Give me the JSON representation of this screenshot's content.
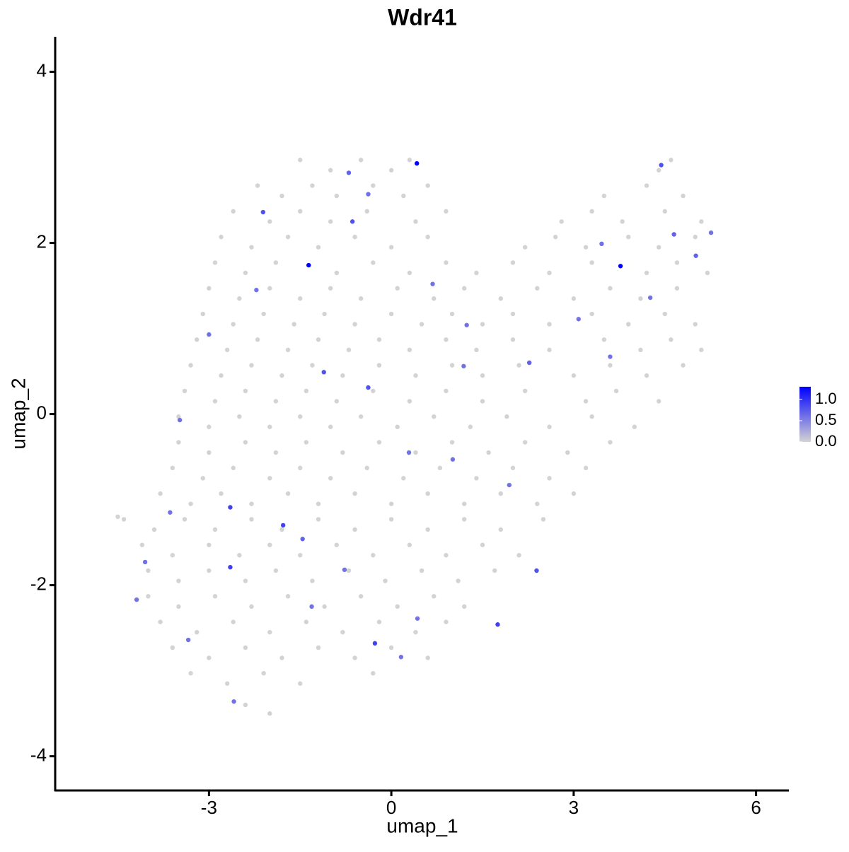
{
  "chart_data": {
    "type": "scatter",
    "title": "Wdr41",
    "x_label": "umap_1",
    "y_label": "umap_2",
    "xlim": [
      -5.53,
      6.54
    ],
    "ylim": [
      -4.4,
      4.41
    ],
    "xticks": [
      -3,
      0,
      3,
      6
    ],
    "yticks": [
      -4,
      -2,
      0,
      2,
      4
    ],
    "color_low": "#d3d3d3",
    "color_high": "#0000ff",
    "clim": [
      0,
      1.3
    ],
    "cticks": [
      {
        "value": 0,
        "label": "0.0"
      },
      0.5,
      {
        "value": 1,
        "label": "1.0"
      }
    ],
    "x": [
      -1.5,
      -1,
      -0.5,
      0,
      0.3,
      4.4,
      4.6,
      -2.2,
      -1.8,
      -1.3,
      -0.9,
      -0.3,
      0.2,
      0.6,
      3.5,
      4.2,
      4.8,
      -2.6,
      -2.0,
      -1.5,
      -1.0,
      -0.4,
      0.4,
      0.9,
      2.8,
      3.3,
      3.8,
      4.5,
      5.1,
      -2.8,
      -2.3,
      -1.7,
      -1.2,
      -0.6,
      0,
      0.6,
      2.2,
      2.7,
      3.2,
      3.9,
      4.4,
      5.0,
      -2.9,
      -2.4,
      -1.9,
      -0.9,
      -0.3,
      0.3,
      0.9,
      1.4,
      2.0,
      2.6,
      3.3,
      4.2,
      4.7,
      5.2,
      -3.0,
      -2.5,
      -2.0,
      -1.5,
      -1.0,
      -0.5,
      0.1,
      0.7,
      1.2,
      1.8,
      2.4,
      3.0,
      3.6,
      4.1,
      4.7,
      -3.1,
      -2.6,
      -2.1,
      -1.6,
      -1.1,
      -0.6,
      0,
      0.5,
      1.0,
      1.5,
      2.0,
      2.6,
      3.3,
      3.9,
      4.5,
      5.0,
      -3.2,
      -2.7,
      -2.2,
      -1.7,
      -1.2,
      -0.7,
      -0.2,
      0.3,
      0.9,
      1.4,
      2.0,
      2.6,
      3.5,
      4.1,
      4.6,
      5.1,
      -3.3,
      -2.8,
      -2.3,
      -1.8,
      -1.3,
      -0.8,
      -0.2,
      0.4,
      1.0,
      1.5,
      2.1,
      3.0,
      3.6,
      4.2,
      4.8,
      -3.4,
      -2.9,
      -2.4,
      -1.9,
      -1.4,
      -0.9,
      -0.3,
      0.3,
      0.9,
      1.5,
      2.2,
      3.2,
      3.7,
      4.4,
      -3.5,
      -3.0,
      -2.5,
      -2.0,
      -1.5,
      -1.0,
      -0.5,
      0.1,
      0.7,
      1.3,
      1.9,
      2.6,
      3.3,
      4.0,
      -3.5,
      -3.0,
      -2.4,
      -1.9,
      -1.4,
      -0.8,
      -0.2,
      0.4,
      1.0,
      1.6,
      2.2,
      2.9,
      3.6,
      -3.6,
      -3.1,
      -2.6,
      -2.0,
      -1.5,
      -1.0,
      -0.4,
      0.2,
      0.8,
      1.4,
      2.0,
      2.6,
      3.2,
      -4.5,
      -3.8,
      -3.3,
      -2.8,
      -2.3,
      -1.7,
      -1.2,
      -0.6,
      0,
      0.6,
      1.2,
      1.8,
      2.4,
      3.0,
      -4.4,
      -3.9,
      -3.4,
      -2.9,
      -2.3,
      -1.8,
      -1.2,
      -0.6,
      0,
      0.6,
      1.2,
      1.8,
      2.5,
      -4.1,
      -3.6,
      -3.0,
      -2.5,
      -2.0,
      -1.5,
      -0.9,
      -0.3,
      0.3,
      0.9,
      1.5,
      2.1,
      -4.0,
      -3.5,
      -3.0,
      -2.4,
      -1.9,
      -1.3,
      -0.7,
      -0.1,
      0.5,
      1.1,
      1.7,
      -4.0,
      -3.5,
      -2.9,
      -2.3,
      -1.7,
      -1.1,
      -0.5,
      0.1,
      0.7,
      1.2,
      -3.8,
      -3.2,
      -2.6,
      -2.0,
      -1.4,
      -0.8,
      -0.2,
      0.4,
      0.9,
      -3.6,
      -3.0,
      -2.4,
      -1.8,
      -1.2,
      -0.6,
      0,
      0.6,
      -3.3,
      -2.7,
      -2.1,
      -1.5,
      -0.3,
      -2.4,
      -2.0,
      0.42,
      -1.36,
      3.77,
      -2.11,
      -0.64,
      -0.7,
      -2.65,
      -0.27,
      2.39,
      1.75,
      -1.11,
      -0.38,
      -1.78,
      -2.65,
      2.27,
      4.44,
      4.65,
      5.01,
      5.26,
      -3.0,
      -4.19,
      -3.48,
      1.19,
      0.68,
      1.94,
      3.08,
      4.26,
      1.01,
      -1.46,
      -4.05,
      -2.59,
      -1.31,
      0.16,
      3.46,
      -2.22,
      -0.38,
      0.29,
      -0.77,
      -3.34,
      -3.64,
      0.43,
      3.6,
      1.24
    ],
    "y": [
      2.97,
      2.85,
      2.97,
      2.85,
      2.97,
      2.85,
      2.97,
      2.67,
      2.55,
      2.67,
      2.55,
      2.67,
      2.55,
      2.67,
      2.55,
      2.67,
      2.55,
      2.37,
      2.25,
      2.37,
      2.25,
      2.37,
      2.25,
      2.37,
      2.25,
      2.37,
      2.25,
      2.37,
      2.25,
      2.07,
      1.95,
      2.07,
      1.95,
      2.07,
      1.95,
      2.07,
      1.95,
      2.07,
      1.95,
      2.07,
      1.95,
      2.07,
      1.77,
      1.65,
      1.77,
      1.65,
      1.77,
      1.65,
      1.77,
      1.65,
      1.77,
      1.65,
      1.77,
      1.65,
      1.77,
      1.65,
      1.47,
      1.35,
      1.47,
      1.35,
      1.47,
      1.35,
      1.47,
      1.35,
      1.47,
      1.35,
      1.47,
      1.35,
      1.47,
      1.35,
      1.47,
      1.17,
      1.05,
      1.17,
      1.05,
      1.17,
      1.05,
      1.17,
      1.05,
      1.17,
      1.05,
      1.17,
      1.05,
      1.17,
      1.05,
      1.17,
      1.05,
      0.87,
      0.75,
      0.87,
      0.75,
      0.87,
      0.75,
      0.87,
      0.75,
      0.87,
      0.75,
      0.87,
      0.75,
      0.87,
      0.75,
      0.87,
      0.75,
      0.57,
      0.45,
      0.57,
      0.45,
      0.57,
      0.45,
      0.57,
      0.45,
      0.57,
      0.45,
      0.57,
      0.45,
      0.57,
      0.45,
      0.57,
      0.27,
      0.15,
      0.27,
      0.15,
      0.27,
      0.15,
      0.27,
      0.15,
      0.27,
      0.15,
      0.27,
      0.15,
      0.27,
      0.15,
      -0.03,
      -0.15,
      -0.03,
      -0.15,
      -0.03,
      -0.15,
      -0.03,
      -0.15,
      -0.03,
      -0.15,
      -0.03,
      -0.15,
      -0.03,
      -0.15,
      -0.33,
      -0.45,
      -0.33,
      -0.45,
      -0.33,
      -0.45,
      -0.33,
      -0.45,
      -0.33,
      -0.45,
      -0.33,
      -0.45,
      -0.33,
      -0.63,
      -0.75,
      -0.63,
      -0.75,
      -0.63,
      -0.75,
      -0.63,
      -0.75,
      -0.63,
      -0.75,
      -0.63,
      -0.75,
      -0.63,
      -1.2,
      -0.93,
      -1.05,
      -0.93,
      -1.05,
      -0.93,
      -1.05,
      -0.93,
      -1.05,
      -0.93,
      -1.05,
      -0.93,
      -1.05,
      -0.93,
      -1.23,
      -1.35,
      -1.23,
      -1.35,
      -1.23,
      -1.35,
      -1.23,
      -1.35,
      -1.23,
      -1.35,
      -1.23,
      -1.35,
      -1.23,
      -1.53,
      -1.65,
      -1.53,
      -1.65,
      -1.53,
      -1.65,
      -1.53,
      -1.65,
      -1.53,
      -1.65,
      -1.53,
      -1.65,
      -1.83,
      -1.95,
      -1.83,
      -1.95,
      -1.83,
      -1.95,
      -1.83,
      -1.95,
      -1.83,
      -1.95,
      -1.83,
      -2.13,
      -2.25,
      -2.13,
      -2.25,
      -2.13,
      -2.25,
      -2.13,
      -2.25,
      -2.13,
      -2.25,
      -2.43,
      -2.55,
      -2.43,
      -2.55,
      -2.43,
      -2.55,
      -2.43,
      -2.55,
      -2.43,
      -2.73,
      -2.85,
      -2.73,
      -2.85,
      -2.73,
      -2.85,
      -2.73,
      -2.85,
      -3.03,
      -3.15,
      -3.03,
      -3.15,
      -3.03,
      -3.4,
      -3.5,
      2.93,
      1.74,
      1.73,
      2.36,
      2.25,
      2.82,
      -1.79,
      -2.68,
      -1.83,
      -2.46,
      0.49,
      0.31,
      -1.3,
      -1.09,
      0.6,
      2.91,
      2.1,
      1.85,
      2.12,
      0.93,
      -2.17,
      -0.07,
      0.56,
      1.52,
      -0.83,
      1.11,
      1.36,
      -0.53,
      -1.46,
      -1.73,
      -3.36,
      -2.25,
      -2.84,
      1.99,
      1.45,
      2.57,
      -0.45,
      -1.82,
      -2.64,
      -1.15,
      -2.39,
      0.67,
      1.04
    ],
    "values": [
      0,
      0,
      0,
      0,
      0,
      0,
      0,
      0,
      0,
      0,
      0,
      0,
      0,
      0,
      0,
      0,
      0,
      0,
      0,
      0,
      0,
      0,
      0,
      0,
      0,
      0,
      0,
      0,
      0,
      0,
      0,
      0,
      0,
      0,
      0,
      0,
      0,
      0,
      0,
      0,
      0,
      0,
      0,
      0,
      0,
      0,
      0,
      0,
      0,
      0,
      0,
      0,
      0,
      0,
      0,
      0,
      0,
      0,
      0,
      0,
      0,
      0,
      0,
      0,
      0,
      0,
      0,
      0,
      0,
      0,
      0,
      0,
      0,
      0,
      0,
      0,
      0,
      0,
      0,
      0,
      0,
      0,
      0,
      0,
      0,
      0,
      0,
      0,
      0,
      0,
      0,
      0,
      0,
      0,
      0,
      0,
      0,
      0,
      0,
      0,
      0,
      0,
      0,
      0,
      0,
      0,
      0,
      0,
      0,
      0,
      0,
      0,
      0,
      0,
      0,
      0,
      0,
      0,
      0,
      0,
      0,
      0,
      0,
      0,
      0,
      0,
      0,
      0,
      0,
      0,
      0,
      0,
      0,
      0,
      0,
      0,
      0,
      0,
      0,
      0,
      0,
      0,
      0,
      0,
      0,
      0,
      0,
      0,
      0,
      0,
      0,
      0,
      0,
      0,
      0,
      0,
      0,
      0,
      0,
      0,
      0,
      0,
      0,
      0,
      0,
      0,
      0,
      0,
      0,
      0,
      0,
      0,
      0,
      0,
      0,
      0,
      0,
      0,
      0,
      0,
      0,
      0,
      0,
      0,
      0,
      0,
      0,
      0,
      0,
      0,
      0,
      0,
      0,
      0,
      0,
      0,
      0,
      0,
      0,
      0,
      0,
      0,
      0,
      0,
      0,
      0,
      0,
      0,
      0,
      0,
      0,
      0,
      0,
      0,
      0,
      0,
      0,
      0,
      0,
      0,
      0,
      0,
      0,
      0,
      0,
      0,
      0,
      0,
      0,
      0,
      0,
      0,
      0,
      0,
      0,
      0,
      0,
      0,
      0,
      0,
      0,
      0,
      0,
      0,
      0,
      0,
      0,
      0,
      0,
      0,
      0,
      0,
      0,
      0,
      0,
      0,
      1.3,
      1.3,
      1.3,
      0.8,
      0.8,
      0.7,
      0.9,
      0.9,
      0.8,
      0.9,
      0.8,
      0.8,
      0.9,
      0.9,
      0.7,
      0.8,
      0.7,
      0.7,
      0.6,
      0.6,
      0.6,
      0.6,
      0.6,
      0.6,
      0.6,
      0.6,
      0.6,
      0.6,
      0.7,
      0.6,
      0.6,
      0.6,
      0.6,
      0.6,
      0.6,
      0.6,
      0.6,
      0.6,
      0.6,
      0.6,
      0.6,
      0.6,
      0.6
    ]
  }
}
